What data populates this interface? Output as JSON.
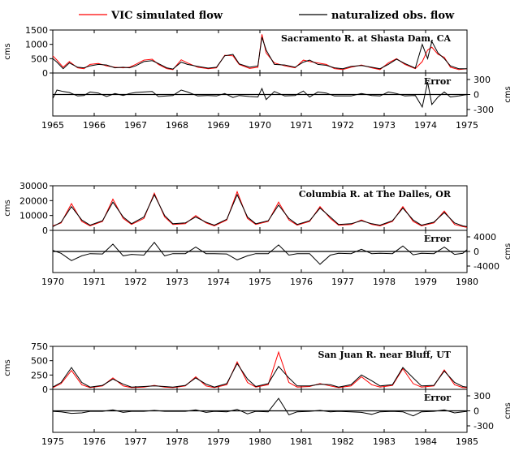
{
  "legend": {
    "sim_label": "VIC simulated flow",
    "obs_label": "naturalized obs. flow",
    "sim_color": "#ff0000",
    "obs_color": "#000000"
  },
  "chart_data": [
    {
      "type": "line",
      "title": "Sacramento R. at Shasta Dam, CA",
      "ylabel": "cms",
      "ylim": [
        0,
        1500
      ],
      "yticks": [
        0,
        500,
        1000,
        1500
      ],
      "xlim": [
        1965,
        1975
      ],
      "xticks": [
        1965,
        1966,
        1967,
        1968,
        1969,
        1970,
        1971,
        1972,
        1973,
        1974,
        1975
      ],
      "series": [
        {
          "name": "VIC simulated flow",
          "color": "#ff0000",
          "x": [
            1965.0,
            1965.1,
            1965.25,
            1965.4,
            1965.6,
            1965.75,
            1965.9,
            1966.1,
            1966.3,
            1966.5,
            1966.7,
            1966.85,
            1967.0,
            1967.2,
            1967.4,
            1967.55,
            1967.75,
            1967.9,
            1968.1,
            1968.25,
            1968.5,
            1968.75,
            1968.95,
            1969.15,
            1969.35,
            1969.5,
            1969.75,
            1969.95,
            1970.05,
            1970.15,
            1970.35,
            1970.6,
            1970.85,
            1971.05,
            1971.2,
            1971.4,
            1971.6,
            1971.8,
            1972.0,
            1972.2,
            1972.45,
            1972.7,
            1972.9,
            1973.1,
            1973.3,
            1973.5,
            1973.75,
            1973.92,
            1974.05,
            1974.15,
            1974.3,
            1974.45,
            1974.6,
            1974.8,
            1975.0
          ],
          "y": [
            600,
            450,
            200,
            400,
            180,
            150,
            300,
            330,
            250,
            200,
            180,
            200,
            300,
            450,
            480,
            300,
            150,
            120,
            460,
            350,
            200,
            150,
            180,
            620,
            600,
            300,
            160,
            200,
            1350,
            700,
            350,
            250,
            180,
            450,
            400,
            350,
            300,
            150,
            120,
            200,
            280,
            180,
            120,
            350,
            500,
            300,
            150,
            400,
            800,
            900,
            650,
            550,
            200,
            120,
            150
          ]
        },
        {
          "name": "naturalized obs. flow",
          "color": "#000000",
          "x": [
            1965.0,
            1965.1,
            1965.25,
            1965.4,
            1965.6,
            1965.75,
            1965.9,
            1966.1,
            1966.3,
            1966.5,
            1966.7,
            1966.85,
            1967.0,
            1967.2,
            1967.4,
            1967.55,
            1967.75,
            1967.9,
            1968.1,
            1968.25,
            1968.5,
            1968.75,
            1968.95,
            1969.15,
            1969.35,
            1969.5,
            1969.75,
            1969.95,
            1970.05,
            1970.15,
            1970.35,
            1970.6,
            1970.85,
            1971.05,
            1971.2,
            1971.4,
            1971.6,
            1971.8,
            1972.0,
            1972.2,
            1972.45,
            1972.7,
            1972.9,
            1973.1,
            1973.3,
            1973.5,
            1973.75,
            1973.92,
            1974.05,
            1974.15,
            1974.3,
            1974.45,
            1974.6,
            1974.8,
            1975.0
          ],
          "y": [
            500,
            380,
            150,
            350,
            200,
            180,
            250,
            300,
            280,
            180,
            200,
            180,
            250,
            400,
            430,
            330,
            180,
            140,
            380,
            300,
            230,
            170,
            200,
            600,
            650,
            320,
            200,
            250,
            1250,
            800,
            300,
            280,
            200,
            380,
            450,
            300,
            270,
            180,
            150,
            230,
            260,
            200,
            150,
            300,
            480,
            330,
            170,
            1000,
            500,
            1100,
            700,
            500,
            250,
            150,
            150
          ]
        }
      ]
    },
    {
      "type": "line",
      "title": "Error",
      "ylabel": "cms",
      "ylim": [
        -300,
        300
      ],
      "yticks": [
        -300,
        0,
        300
      ],
      "xlim": [
        1965,
        1975
      ],
      "series": [
        {
          "name": "Error",
          "color": "#000000",
          "x": [
            1965.0,
            1965.1,
            1965.25,
            1965.4,
            1965.6,
            1965.75,
            1965.9,
            1966.1,
            1966.3,
            1966.5,
            1966.7,
            1966.85,
            1967.0,
            1967.2,
            1967.4,
            1967.55,
            1967.75,
            1967.9,
            1968.1,
            1968.25,
            1968.5,
            1968.75,
            1968.95,
            1969.15,
            1969.35,
            1969.5,
            1969.75,
            1969.95,
            1970.05,
            1970.15,
            1970.35,
            1970.6,
            1970.85,
            1971.05,
            1971.2,
            1971.4,
            1971.6,
            1971.8,
            1972.0,
            1972.2,
            1972.45,
            1972.7,
            1972.9,
            1973.1,
            1973.3,
            1973.5,
            1973.75,
            1973.92,
            1974.05,
            1974.15,
            1974.3,
            1974.45,
            1974.6,
            1974.8,
            1975.0
          ],
          "y": [
            -80,
            90,
            60,
            40,
            -30,
            -20,
            50,
            30,
            -40,
            20,
            -20,
            20,
            40,
            50,
            60,
            -40,
            -30,
            -20,
            90,
            50,
            -30,
            -20,
            -30,
            20,
            -60,
            -20,
            -40,
            -50,
            120,
            -100,
            60,
            -30,
            -20,
            70,
            -50,
            50,
            30,
            -30,
            -30,
            -30,
            20,
            -20,
            -30,
            50,
            20,
            -30,
            -20,
            -250,
            250,
            -200,
            -50,
            50,
            -50,
            -30,
            0
          ]
        }
      ]
    },
    {
      "type": "line",
      "title": "Columbia R. at The Dalles, OR",
      "ylabel": "cms",
      "ylim": [
        0,
        30000
      ],
      "yticks": [
        0,
        10000,
        20000,
        30000
      ],
      "xlim": [
        1970,
        1980
      ],
      "xticks": [
        1970,
        1971,
        1972,
        1973,
        1974,
        1975,
        1976,
        1977,
        1978,
        1979,
        1980
      ],
      "series": [
        {
          "name": "VIC simulated flow",
          "color": "#ff0000",
          "x": [
            1970.0,
            1970.2,
            1970.45,
            1970.7,
            1970.9,
            1971.2,
            1971.45,
            1971.7,
            1971.9,
            1972.2,
            1972.45,
            1972.7,
            1972.9,
            1973.2,
            1973.45,
            1973.7,
            1973.9,
            1974.2,
            1974.45,
            1974.7,
            1974.9,
            1975.2,
            1975.45,
            1975.7,
            1975.9,
            1976.2,
            1976.45,
            1976.7,
            1976.9,
            1977.2,
            1977.45,
            1977.7,
            1977.9,
            1978.2,
            1978.45,
            1978.7,
            1978.9,
            1979.2,
            1979.45,
            1979.7,
            1979.9,
            1980.0
          ],
          "y": [
            3000,
            5000,
            18000,
            6000,
            3000,
            6000,
            21000,
            8000,
            4000,
            8000,
            25000,
            9000,
            4000,
            4500,
            10000,
            5000,
            3000,
            7000,
            26000,
            8000,
            4000,
            6000,
            19000,
            7000,
            3500,
            6000,
            16000,
            8000,
            3500,
            4000,
            7000,
            4000,
            3000,
            6000,
            16000,
            6000,
            3000,
            5000,
            13000,
            4000,
            2500,
            2000
          ]
        },
        {
          "name": "naturalized obs. flow",
          "color": "#000000",
          "x": [
            1970.0,
            1970.2,
            1970.45,
            1970.7,
            1970.9,
            1971.2,
            1971.45,
            1971.7,
            1971.9,
            1972.2,
            1972.45,
            1972.7,
            1972.9,
            1973.2,
            1973.45,
            1973.7,
            1973.9,
            1974.2,
            1974.45,
            1974.7,
            1974.9,
            1975.2,
            1975.45,
            1975.7,
            1975.9,
            1976.2,
            1976.45,
            1976.7,
            1976.9,
            1977.2,
            1977.45,
            1977.7,
            1977.9,
            1978.2,
            1978.45,
            1978.7,
            1978.9,
            1979.2,
            1979.45,
            1979.7,
            1979.9,
            1980.0
          ],
          "y": [
            2500,
            5500,
            16000,
            7000,
            3500,
            6500,
            19000,
            9000,
            4500,
            9000,
            24000,
            10000,
            4500,
            5000,
            9000,
            5500,
            3500,
            7500,
            24000,
            9000,
            4500,
            6500,
            17000,
            8000,
            4000,
            6500,
            15000,
            9000,
            4000,
            4500,
            6500,
            4500,
            3500,
            6500,
            15000,
            7000,
            3500,
            5500,
            12000,
            5000,
            3000,
            2500
          ]
        }
      ]
    },
    {
      "type": "line",
      "title": "Error",
      "ylabel": "cms",
      "ylim": [
        -4000,
        4000
      ],
      "yticks": [
        -4000,
        0,
        4000
      ],
      "xlim": [
        1970,
        1980
      ],
      "series": [
        {
          "name": "Error",
          "color": "#000000",
          "x": [
            1970.0,
            1970.2,
            1970.45,
            1970.7,
            1970.9,
            1971.2,
            1971.45,
            1971.7,
            1971.9,
            1972.2,
            1972.45,
            1972.7,
            1972.9,
            1973.2,
            1973.45,
            1973.7,
            1973.9,
            1974.2,
            1974.45,
            1974.7,
            1974.9,
            1975.2,
            1975.45,
            1975.7,
            1975.9,
            1976.2,
            1976.45,
            1976.7,
            1976.9,
            1977.2,
            1977.45,
            1977.7,
            1977.9,
            1978.2,
            1978.45,
            1978.7,
            1978.9,
            1979.2,
            1979.45,
            1979.7,
            1979.9,
            1980.0
          ],
          "y": [
            300,
            -500,
            -2500,
            -1200,
            -600,
            -700,
            2000,
            -1200,
            -800,
            -1000,
            2500,
            -1200,
            -600,
            -600,
            1200,
            -600,
            -600,
            -700,
            -2300,
            -1200,
            -600,
            -600,
            1800,
            -1000,
            -600,
            -600,
            -3500,
            -1000,
            -500,
            -600,
            600,
            -600,
            -500,
            -600,
            1500,
            -900,
            -500,
            -600,
            1200,
            -800,
            -500,
            500
          ]
        }
      ]
    },
    {
      "type": "line",
      "title": "San Juan R. near Bluff, UT",
      "ylabel": "cms",
      "ylim": [
        0,
        750
      ],
      "yticks": [
        0,
        250,
        500,
        750
      ],
      "xlim": [
        1975,
        1985
      ],
      "xticks": [
        1975,
        1976,
        1977,
        1978,
        1979,
        1980,
        1981,
        1982,
        1983,
        1984,
        1985
      ],
      "series": [
        {
          "name": "VIC simulated flow",
          "color": "#ff0000",
          "x": [
            1975.0,
            1975.2,
            1975.45,
            1975.7,
            1975.9,
            1976.2,
            1976.45,
            1976.7,
            1976.9,
            1977.2,
            1977.45,
            1977.7,
            1977.9,
            1978.2,
            1978.45,
            1978.7,
            1978.9,
            1979.2,
            1979.45,
            1979.7,
            1979.9,
            1980.2,
            1980.45,
            1980.7,
            1980.9,
            1981.2,
            1981.45,
            1981.7,
            1981.9,
            1982.2,
            1982.45,
            1982.7,
            1982.9,
            1983.2,
            1983.45,
            1983.7,
            1983.9,
            1984.2,
            1984.45,
            1984.7,
            1984.9,
            1985.0
          ],
          "y": [
            30,
            100,
            330,
            80,
            30,
            60,
            200,
            60,
            30,
            40,
            70,
            40,
            30,
            60,
            220,
            60,
            30,
            80,
            480,
            120,
            40,
            80,
            650,
            120,
            40,
            50,
            100,
            60,
            30,
            60,
            220,
            80,
            40,
            70,
            360,
            100,
            40,
            60,
            340,
            80,
            30,
            30
          ]
        },
        {
          "name": "naturalized obs. flow",
          "color": "#000000",
          "x": [
            1975.0,
            1975.2,
            1975.45,
            1975.7,
            1975.9,
            1976.2,
            1976.45,
            1976.7,
            1976.9,
            1977.2,
            1977.45,
            1977.7,
            1977.9,
            1978.2,
            1978.45,
            1978.7,
            1978.9,
            1979.2,
            1979.45,
            1979.7,
            1979.9,
            1980.2,
            1980.45,
            1980.7,
            1980.9,
            1981.2,
            1981.45,
            1981.7,
            1981.9,
            1982.2,
            1982.45,
            1982.7,
            1982.9,
            1983.2,
            1983.45,
            1983.7,
            1983.9,
            1984.2,
            1984.45,
            1984.7,
            1984.9,
            1985.0
          ],
          "y": [
            40,
            120,
            380,
            120,
            40,
            70,
            180,
            90,
            40,
            50,
            60,
            50,
            40,
            70,
            200,
            90,
            40,
            100,
            450,
            180,
            50,
            100,
            400,
            200,
            60,
            60,
            90,
            80,
            40,
            80,
            250,
            150,
            60,
            80,
            380,
            200,
            60,
            70,
            320,
            120,
            50,
            40
          ]
        }
      ]
    },
    {
      "type": "line",
      "title": "Error",
      "ylabel": "cms",
      "ylim": [
        -300,
        300
      ],
      "yticks": [
        -300,
        0,
        300
      ],
      "xlim": [
        1975,
        1985
      ],
      "series": [
        {
          "name": "Error",
          "color": "#000000",
          "x": [
            1975.0,
            1975.2,
            1975.45,
            1975.7,
            1975.9,
            1976.2,
            1976.45,
            1976.7,
            1976.9,
            1977.2,
            1977.45,
            1977.7,
            1977.9,
            1978.2,
            1978.45,
            1978.7,
            1978.9,
            1979.2,
            1979.45,
            1979.7,
            1979.9,
            1980.2,
            1980.45,
            1980.7,
            1980.9,
            1981.2,
            1981.45,
            1981.7,
            1981.9,
            1982.2,
            1982.45,
            1982.7,
            1982.9,
            1983.2,
            1983.45,
            1983.7,
            1983.9,
            1984.2,
            1984.45,
            1984.7,
            1984.9,
            1985.0
          ],
          "y": [
            -10,
            -20,
            -50,
            -40,
            -10,
            -10,
            20,
            -30,
            -10,
            -10,
            10,
            -10,
            -10,
            -10,
            20,
            -30,
            -10,
            -20,
            30,
            -60,
            -10,
            -20,
            250,
            -80,
            -20,
            -10,
            10,
            -20,
            -10,
            -20,
            -30,
            -70,
            -20,
            -10,
            -20,
            -100,
            -20,
            -10,
            20,
            -40,
            -20,
            -10
          ]
        }
      ]
    }
  ]
}
